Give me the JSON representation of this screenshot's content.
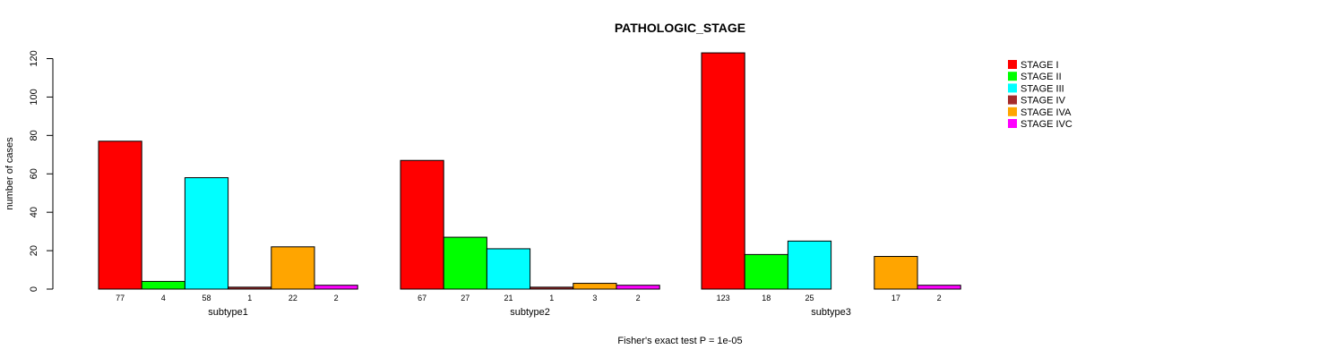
{
  "chart_data": {
    "type": "bar",
    "title": "PATHOLOGIC_STAGE",
    "ylabel": "number of cases",
    "footer": "Fisher's exact test P = 1e-05",
    "ylim": [
      0,
      120
    ],
    "yticks": [
      0,
      20,
      40,
      60,
      80,
      100,
      120
    ],
    "groups": [
      "subtype1",
      "subtype2",
      "subtype3"
    ],
    "series": [
      {
        "name": "STAGE I",
        "color": "#ff0000",
        "values": [
          77,
          67,
          123
        ],
        "labels": [
          "77",
          "67",
          "123"
        ]
      },
      {
        "name": "STAGE II",
        "color": "#00ff00",
        "values": [
          4,
          27,
          18
        ],
        "labels": [
          "4",
          "27",
          "18"
        ]
      },
      {
        "name": "STAGE III",
        "color": "#00ffff",
        "values": [
          58,
          21,
          25
        ],
        "labels": [
          "58",
          "21",
          "25"
        ]
      },
      {
        "name": "STAGE IV",
        "color": "#a52a2a",
        "values": [
          1,
          1,
          0
        ],
        "labels": [
          "1",
          "1",
          ""
        ]
      },
      {
        "name": "STAGE IVA",
        "color": "#ffa500",
        "values": [
          22,
          3,
          17
        ],
        "labels": [
          "22",
          "3",
          "17"
        ]
      },
      {
        "name": "STAGE IVC",
        "color": "#ff00ff",
        "values": [
          2,
          2,
          2
        ],
        "labels": [
          "2",
          "2",
          "2"
        ]
      }
    ]
  }
}
